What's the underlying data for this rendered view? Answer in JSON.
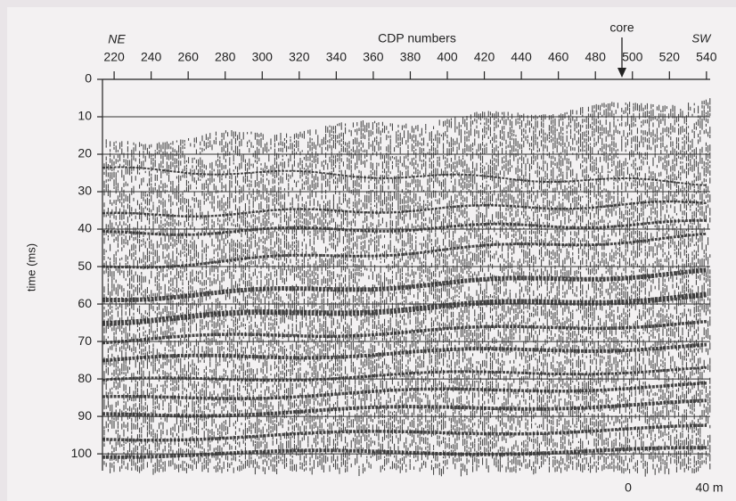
{
  "chart_data": {
    "type": "seismic",
    "xlabel": "CDP numbers",
    "ylabel": "time (ms)",
    "xlim": [
      213.7,
      542
    ],
    "xticks": [
      220,
      240,
      260,
      280,
      300,
      320,
      340,
      360,
      380,
      400,
      420,
      440,
      460,
      480,
      500,
      520,
      540
    ],
    "ylim": [
      0,
      104.5
    ],
    "yticks": [
      0,
      10,
      20,
      30,
      40,
      50,
      60,
      70,
      80,
      90,
      100
    ],
    "grid": true,
    "annotations": {
      "left": "NE",
      "right": "SW",
      "core": "core",
      "scale_start": "0",
      "scale_end": "40 m"
    }
  }
}
